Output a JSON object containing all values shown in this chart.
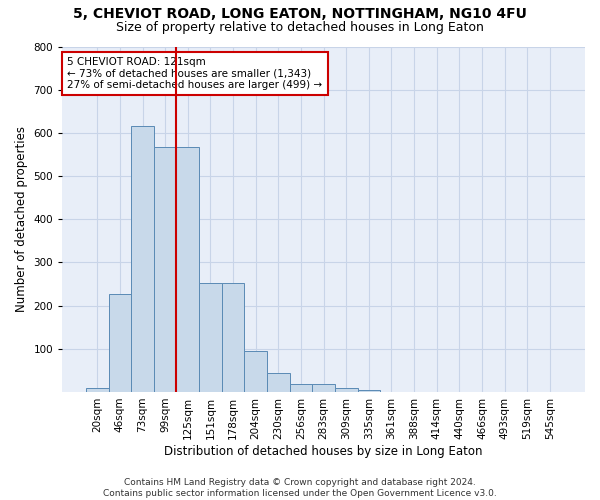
{
  "title1": "5, CHEVIOT ROAD, LONG EATON, NOTTINGHAM, NG10 4FU",
  "title2": "Size of property relative to detached houses in Long Eaton",
  "xlabel": "Distribution of detached houses by size in Long Eaton",
  "ylabel": "Number of detached properties",
  "categories": [
    "20sqm",
    "46sqm",
    "73sqm",
    "99sqm",
    "125sqm",
    "151sqm",
    "178sqm",
    "204sqm",
    "230sqm",
    "256sqm",
    "283sqm",
    "309sqm",
    "335sqm",
    "361sqm",
    "388sqm",
    "414sqm",
    "440sqm",
    "466sqm",
    "493sqm",
    "519sqm",
    "545sqm"
  ],
  "values": [
    10,
    228,
    617,
    567,
    567,
    253,
    253,
    96,
    44,
    19,
    19,
    10,
    5,
    0,
    0,
    0,
    0,
    0,
    0,
    0,
    0
  ],
  "bar_color": "#c8d9ea",
  "bar_edge_color": "#5a8ab5",
  "vline_x_index": 3.5,
  "vline_color": "#cc0000",
  "annotation_text": "5 CHEVIOT ROAD: 121sqm\n← 73% of detached houses are smaller (1,343)\n27% of semi-detached houses are larger (499) →",
  "annotation_box_color": "#ffffff",
  "annotation_box_edge": "#cc0000",
  "ylim": [
    0,
    800
  ],
  "yticks": [
    0,
    100,
    200,
    300,
    400,
    500,
    600,
    700,
    800
  ],
  "grid_color": "#c8d4e8",
  "background_color": "#e8eef8",
  "footer": "Contains HM Land Registry data © Crown copyright and database right 2024.\nContains public sector information licensed under the Open Government Licence v3.0.",
  "title1_fontsize": 10,
  "title2_fontsize": 9,
  "xlabel_fontsize": 8.5,
  "ylabel_fontsize": 8.5,
  "footer_fontsize": 6.5,
  "tick_fontsize": 7.5,
  "annotation_fontsize": 7.5
}
